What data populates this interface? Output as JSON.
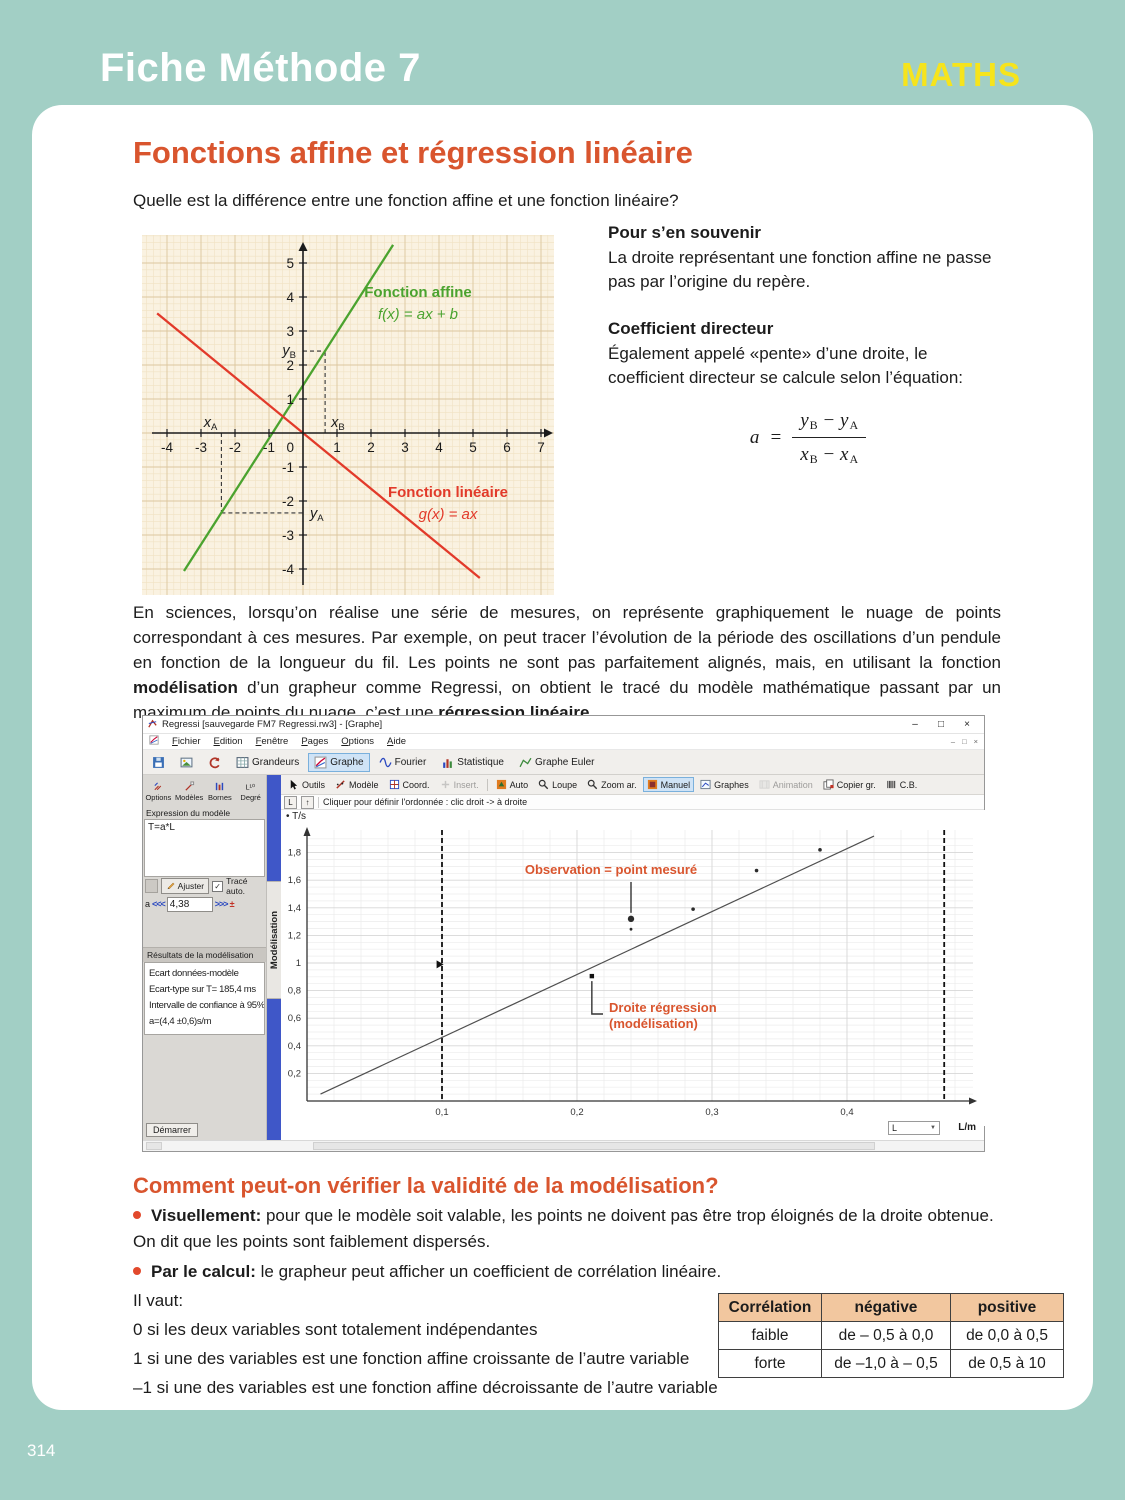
{
  "colors": {
    "teal_background": "#a2cfc5",
    "card": "#ffffff",
    "accent_orange": "#d9552e",
    "badge_yellow": "#f6e41c",
    "bullet_red": "#e2492c",
    "affine_green": "#4ba32f",
    "linear_red": "#e23a2a",
    "regressi_accent_blue": "#3f57c8",
    "table_header_peach": "#f2c79f",
    "graph_paper": "#faf2e1"
  },
  "page": {
    "header_title": "Fiche Méthode 7",
    "subject_badge": "MATHS",
    "page_number": "314"
  },
  "intro": {
    "title": "Fonctions affine et régression linéaire",
    "question": "Quelle est la différence entre une fonction affine et une fonction linéaire?"
  },
  "memo": {
    "remember_title": "Pour s’en souvenir",
    "remember_body": "La droite représentant une fonction affine ne passe pas par l’origine du repère.",
    "slope_title": "Coefficient directeur",
    "slope_body": "Également appelé «pente» d’une droite, le coefficient directeur se calcule selon l’équation:",
    "formula": {
      "lhs": "a",
      "eq": "=",
      "num": [
        {
          "b": "y",
          "s": "B"
        },
        {
          "op": "−"
        },
        {
          "b": "y",
          "s": "A"
        }
      ],
      "den": [
        {
          "b": "x",
          "s": "B"
        },
        {
          "op": "−"
        },
        {
          "b": "x",
          "s": "A"
        }
      ]
    }
  },
  "paragraph": {
    "segments": [
      {
        "t": "En sciences, lorsqu’on réalise une série de mesures, on représente graphiquement le nuage de points correspondant à ces mesures. Par exemple, on peut tracer l’évolution de la période des oscillations d’un pendule en fonction de la longueur du fil. Les points ne sont pas parfaitement alignés, mais, en utilisant la fonction "
      },
      {
        "t": "modélisation",
        "b": true
      },
      {
        "t": " d’un grapheur comme Regressi, on obtient le tracé du modèle mathématique passant par un maximum de points du nuage, c’est une "
      },
      {
        "t": "régression linéaire",
        "b": true
      },
      {
        "t": "."
      }
    ]
  },
  "regressi": {
    "window_title": "Regressi [sauvegarde FM7 Regressi.rw3] - [Graphe]",
    "window_controls": [
      "–",
      "□",
      "×"
    ],
    "menus": [
      "Fichier",
      "Edition",
      "Fenêtre",
      "Pages",
      "Options",
      "Aide"
    ],
    "toolbar_tabs": [
      {
        "icon": "save"
      },
      {
        "icon": "image"
      },
      {
        "icon": "undo"
      },
      {
        "icon": "grid",
        "label": "Grandeurs"
      },
      {
        "icon": "chart",
        "label": "Graphe",
        "active": true
      },
      {
        "icon": "fourier",
        "label": "Fourier"
      },
      {
        "icon": "stat",
        "label": "Statistique"
      },
      {
        "icon": "euler",
        "label": "Graphe Euler"
      }
    ],
    "tools": [
      {
        "icon": "cursor",
        "label": "Outils"
      },
      {
        "icon": "model",
        "label": "Modèle"
      },
      {
        "icon": "coord",
        "label": "Coord."
      },
      {
        "icon": "insert",
        "label": "Insert.",
        "disabled": true
      },
      {
        "sep": true
      },
      {
        "icon": "auto",
        "label": "Auto"
      },
      {
        "icon": "loupe",
        "label": "Loupe"
      },
      {
        "icon": "loupe",
        "label": "Zoom ar."
      },
      {
        "icon": "manuel",
        "label": "Manuel",
        "active": true
      },
      {
        "icon": "graphes",
        "label": "Graphes"
      },
      {
        "icon": "anim",
        "label": "Animation",
        "disabled": true
      },
      {
        "icon": "copier",
        "label": "Copier gr."
      },
      {
        "icon": "cb",
        "label": "C.B."
      }
    ],
    "status": {
      "axis_buttons": [
        "L",
        "↑"
      ],
      "hint": "Cliquer pour définir l'ordonnée : clic droit -> à droite"
    },
    "panel": {
      "buttons": [
        {
          "icon": "options",
          "label": "Options"
        },
        {
          "icon": "modeles",
          "label": "Modèles"
        },
        {
          "icon": "bornes",
          "label": "Bornes"
        },
        {
          "icon": "degre",
          "label": "Degré"
        }
      ],
      "expression_label": "Expression du modèle",
      "expression_value": "T=a*L",
      "fit_button": "Ajuster",
      "auto_trace_label": "Tracé auto.",
      "auto_trace_checked": true,
      "check_glyph": "✓",
      "spinner": {
        "param": "a",
        "value": "4,38",
        "dec": "<<<",
        "inc": ">>>",
        "pm": "±"
      },
      "results_title": "Résultats de la modélisation",
      "results_lines": [
        "Ecart données-modèle",
        "Ecart-type sur T= 185,4 ms",
        "Intervalle de confiance à 95%",
        "a=(4,4 ±0,6)s/m"
      ],
      "start_button": "Démarrer",
      "side_tab": "Modélisation"
    },
    "bottom": {
      "unit_select_value": "L",
      "unit_label": "L/m",
      "select_arrow": "▼"
    }
  },
  "validity": {
    "title": "Comment peut-on vérifier la validité de la modélisation?",
    "bullets": [
      {
        "lead": "Visuellement:",
        "text": " pour que le modèle soit valable, les points ne doivent pas être trop éloignés de la droite obtenue. On dit que les points sont faiblement dispersés."
      },
      {
        "lead": "Par le calcul:",
        "text": " le grapheur peut afficher un coefficient de corrélation linéaire."
      }
    ],
    "intro": "Il vaut:",
    "cases": [
      "0 si les deux variables sont totalement indépendantes",
      "1 si une des variables est une fonction affine croissante de l’autre variable",
      "–1 si une des variables est une fonction affine décroissante de l’autre variable"
    ],
    "table": {
      "headers": [
        "Corrélation",
        "négative",
        "positive"
      ],
      "rows": [
        [
          "faible",
          "de – 0,5 à 0,0",
          "de 0,0 à 0,5"
        ],
        [
          "forte",
          "de –1,0 à – 0,5",
          "de 0,5 à 10"
        ]
      ]
    }
  },
  "chart_data": [
    {
      "id": "function-graph",
      "type": "line",
      "title": "",
      "xlabel": "",
      "ylabel": "",
      "x_ticks": [
        -4,
        -3,
        -2,
        -1,
        1,
        2,
        3,
        4,
        5,
        6,
        7
      ],
      "y_ticks": [
        5,
        4,
        3,
        2,
        1,
        -1,
        -2,
        -3,
        -4
      ],
      "origin_label": "0",
      "xlim": [
        -4.6,
        7.3
      ],
      "ylim": [
        -4.6,
        5.6
      ],
      "grid": true,
      "series": [
        {
          "name": "Fonction affine",
          "equation": "f(x) = ax + b",
          "color": "#4ba32f",
          "slope": 1.56,
          "intercept": 1.4,
          "x_range": [
            -3.5,
            2.65
          ]
        },
        {
          "name": "Fonction linéaire",
          "equation": "g(x) = ax",
          "color": "#e23a2a",
          "slope": -0.82,
          "intercept": 0,
          "x_range": [
            -4.29,
            5.2
          ]
        }
      ],
      "marked_points": {
        "A": {
          "x": -2.4,
          "y": -2.35
        },
        "B": {
          "x": 0.65,
          "y": 2.41
        }
      },
      "labels": {
        "xA": {
          "base": "x",
          "sub": "A"
        },
        "xB": {
          "base": "x",
          "sub": "B"
        },
        "yA": {
          "base": "y",
          "sub": "A"
        },
        "yB": {
          "base": "y",
          "sub": "B"
        }
      }
    },
    {
      "id": "regressi-graph",
      "type": "scatter-line",
      "title": "",
      "ylabel": "T/s",
      "xlabel": "L/m",
      "x_ticks": [
        {
          "v": 0.1,
          "label": "0,1"
        },
        {
          "v": 0.2,
          "label": "0,2"
        },
        {
          "v": 0.3,
          "label": "0,3"
        },
        {
          "v": 0.4,
          "label": "0,4"
        }
      ],
      "y_ticks": [
        {
          "v": 1.8,
          "label": "1,8"
        },
        {
          "v": 1.6,
          "label": "1,6"
        },
        {
          "v": 1.4,
          "label": "1,4"
        },
        {
          "v": 1.2,
          "label": "1,2"
        },
        {
          "v": 1.0,
          "label": "1"
        },
        {
          "v": 0.8,
          "label": "0,8"
        },
        {
          "v": 0.6,
          "label": "0,6"
        },
        {
          "v": 0.4,
          "label": "0,4"
        },
        {
          "v": 0.2,
          "label": "0,2"
        }
      ],
      "xlim": [
        0,
        0.49
      ],
      "ylim": [
        0,
        2.0
      ],
      "grid": true,
      "regression_line": {
        "x1": 0.01,
        "y1": 0.05,
        "x2": 0.42,
        "y2": 1.92,
        "equation": "T=a*L",
        "a": 4.4
      },
      "points": [
        {
          "x": 0.24,
          "y": 1.32,
          "r": 3.2
        },
        {
          "x": 0.24,
          "y": 1.245,
          "r": 1.4
        },
        {
          "x": 0.286,
          "y": 1.39,
          "r": 1.8
        },
        {
          "x": 0.333,
          "y": 1.67,
          "r": 1.8
        },
        {
          "x": 0.38,
          "y": 1.82,
          "r": 1.8
        }
      ],
      "model_point": {
        "x": 0.211,
        "y": 0.905
      },
      "cursor_marker": {
        "x": 0.096,
        "y": 0.99
      },
      "dashed_x": [
        0.1,
        0.472
      ],
      "annotations": {
        "observation": "Observation = point mesuré",
        "regression_line_label": [
          "Droite régression",
          "(modélisation)"
        ]
      }
    }
  ]
}
